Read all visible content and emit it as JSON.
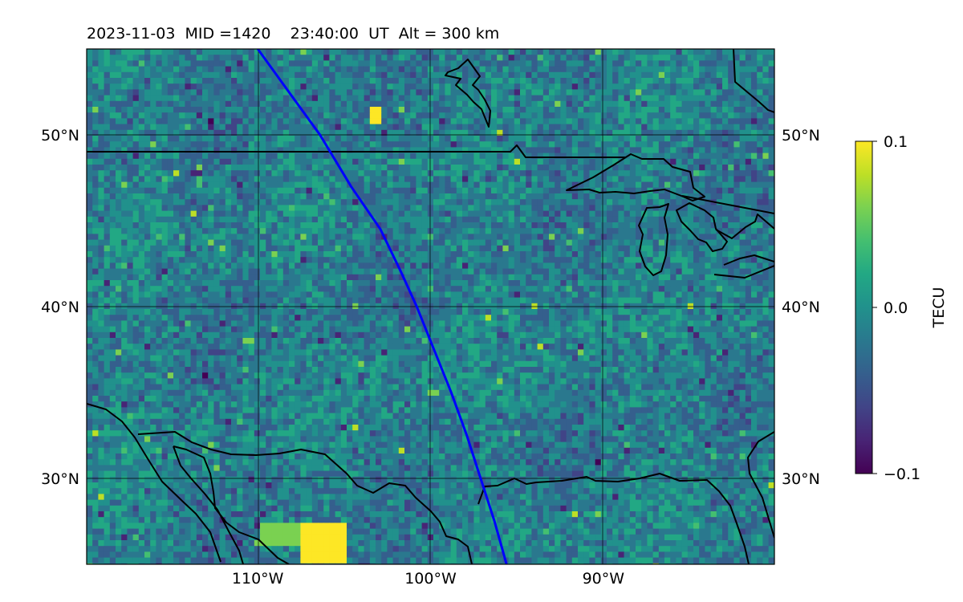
{
  "title": {
    "date": "2023-11-03",
    "mid": "MID =1420",
    "time": "23:40:00",
    "ut": "UT",
    "alt": "Alt = 300 km"
  },
  "map": {
    "lon_range": [
      -119.9,
      -80.1
    ],
    "lat_range": [
      25.0,
      55.0
    ],
    "lat_ticks": [
      {
        "value": 50,
        "label": "50°N"
      },
      {
        "value": 40,
        "label": "40°N"
      },
      {
        "value": 30,
        "label": "30°N"
      }
    ],
    "lon_ticks": [
      {
        "value": -110,
        "label": "110°W"
      },
      {
        "value": -100,
        "label": "100°W"
      },
      {
        "value": -90,
        "label": "90°W"
      }
    ],
    "gridlines": true,
    "colormap": "viridis",
    "track_color": "#0000ff",
    "track_points": [
      [
        -110.0,
        55.0
      ],
      [
        -108.2,
        52.5
      ],
      [
        -106.4,
        50.0
      ],
      [
        -104.6,
        47.0
      ],
      [
        -102.9,
        44.5
      ],
      [
        -101.7,
        42.0
      ],
      [
        -100.8,
        40.0
      ],
      [
        -99.8,
        37.5
      ],
      [
        -98.8,
        35.0
      ],
      [
        -97.9,
        32.5
      ],
      [
        -97.1,
        30.0
      ],
      [
        -96.3,
        27.5
      ],
      [
        -95.6,
        25.0
      ]
    ]
  },
  "colorbar": {
    "label": "TECU",
    "min": -0.1,
    "max": 0.1,
    "ticks": [
      {
        "value": 0.1,
        "label": "0.1"
      },
      {
        "value": 0.0,
        "label": "0.0"
      },
      {
        "value": -0.1,
        "label": "−0.1"
      }
    ]
  }
}
